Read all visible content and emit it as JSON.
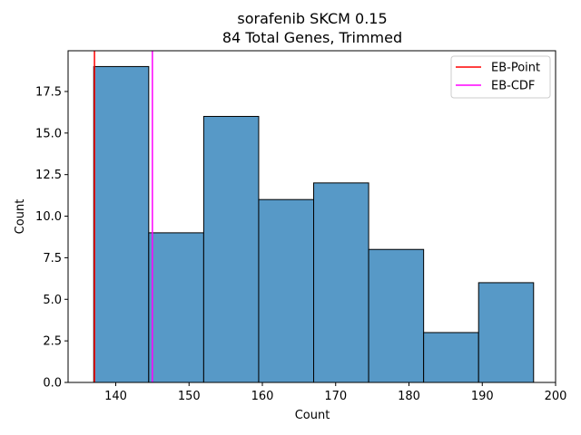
{
  "chart_data": {
    "type": "bar",
    "subtype": "histogram",
    "title": "sorafenib SKCM 0.15",
    "subtitle": "84 Total Genes, Trimmed",
    "xlabel": "Count",
    "ylabel": "Count",
    "xlim": [
      133.5,
      200
    ],
    "ylim": [
      0,
      19.95
    ],
    "bin_edges": [
      137,
      144.5,
      152,
      159.5,
      167,
      174.5,
      182,
      189.5,
      197
    ],
    "values": [
      19,
      9,
      16,
      11,
      12,
      8,
      3,
      6
    ],
    "x_ticks": [
      140,
      150,
      160,
      170,
      180,
      190,
      200
    ],
    "x_tick_labels": [
      "140",
      "150",
      "160",
      "170",
      "180",
      "190",
      "200"
    ],
    "y_ticks": [
      0,
      2.5,
      5,
      7.5,
      10,
      12.5,
      15,
      17.5
    ],
    "y_tick_labels": [
      "0.0",
      "2.5",
      "5.0",
      "7.5",
      "10.0",
      "12.5",
      "15.0",
      "17.5"
    ],
    "bar_color": "#5799c7",
    "vlines": [
      {
        "name": "EB-Point",
        "x": 137.1,
        "color": "#ff0000"
      },
      {
        "name": "EB-CDF",
        "x": 145,
        "color": "#ff00ff"
      }
    ],
    "legend_position": "top-right",
    "grid": false
  }
}
